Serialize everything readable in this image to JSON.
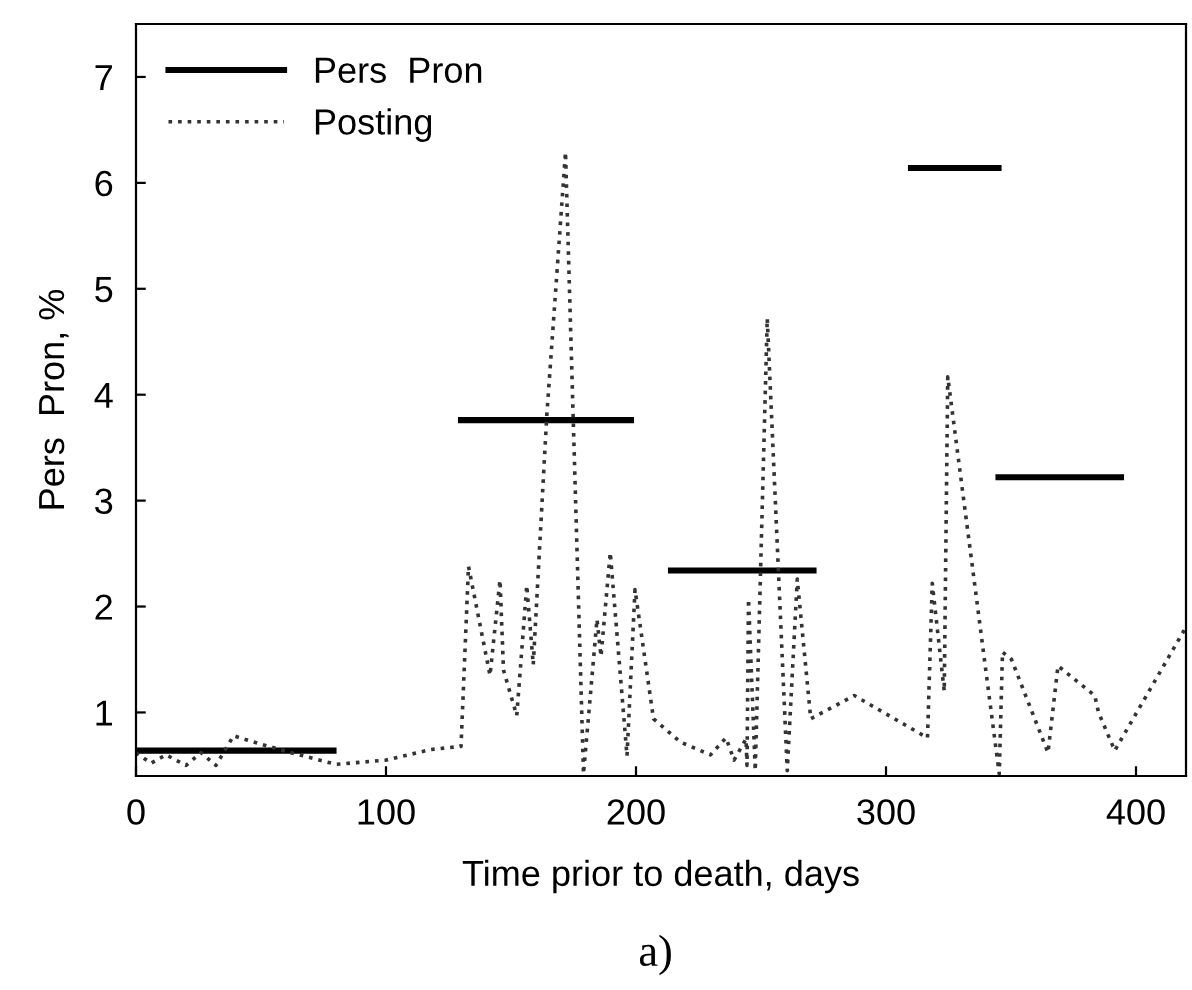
{
  "chart_data": {
    "type": "line",
    "xlabel": "Time prior to death, days",
    "ylabel": "Pers  Pron, %",
    "annotations": [
      "a)"
    ],
    "xlim": [
      0,
      420
    ],
    "xticks": [
      0,
      100,
      200,
      300,
      400
    ],
    "ylim": [
      0.4,
      7.5
    ],
    "yticks": [
      1,
      2,
      3,
      4,
      5,
      6,
      7
    ],
    "grid": false,
    "legend": "top left",
    "marker": "none",
    "series": [
      {
        "name": "Pers  Pron",
        "color": "#000000",
        "line_style": "solid",
        "x": [
          0,
          79,
          null,
          130,
          198,
          null,
          214,
          271,
          null,
          310,
          345,
          null,
          345,
          394
        ],
        "values": [
          0.64,
          0.64,
          null,
          3.76,
          3.76,
          null,
          2.34,
          2.34,
          null,
          6.14,
          6.14,
          null,
          3.22,
          3.22
        ]
      },
      {
        "name": "Posting",
        "color": "#333333",
        "line_style": "dotted",
        "x": [
          0,
          6,
          12,
          20,
          26,
          32,
          39,
          50,
          62,
          80,
          100,
          118,
          130,
          133,
          141.6,
          145.6,
          147,
          152.3,
          156.3,
          158.9,
          164.3,
          171.8,
          179,
          184.4,
          186,
          189.7,
          196.4,
          199.6,
          207,
          217.8,
          229.8,
          236,
          239.2,
          244,
          244.4,
          245,
          247.7,
          252.5,
          260.5,
          264.5,
          269.9,
          287.3,
          316.6,
          318.5,
          323.3,
          324.7,
          345.3,
          346.6,
          350.2,
          364.8,
          368.8,
          383.5,
          385,
          391.5,
          419.6
        ],
        "values": [
          0.62,
          0.52,
          0.6,
          0.5,
          0.62,
          0.5,
          0.78,
          0.7,
          0.62,
          0.51,
          0.55,
          0.65,
          0.68,
          2.38,
          1.35,
          2.25,
          1.4,
          0.97,
          2.2,
          1.45,
          3.8,
          6.29,
          0.42,
          1.88,
          1.53,
          2.51,
          0.59,
          2.16,
          0.94,
          0.72,
          0.6,
          0.76,
          0.55,
          0.75,
          0.5,
          2.07,
          0.45,
          4.72,
          0.45,
          2.26,
          0.94,
          1.16,
          0.76,
          2.22,
          1.2,
          4.17,
          0.42,
          1.57,
          1.5,
          0.62,
          1.44,
          1.16,
          1.0,
          0.64,
          1.79
        ]
      }
    ]
  }
}
